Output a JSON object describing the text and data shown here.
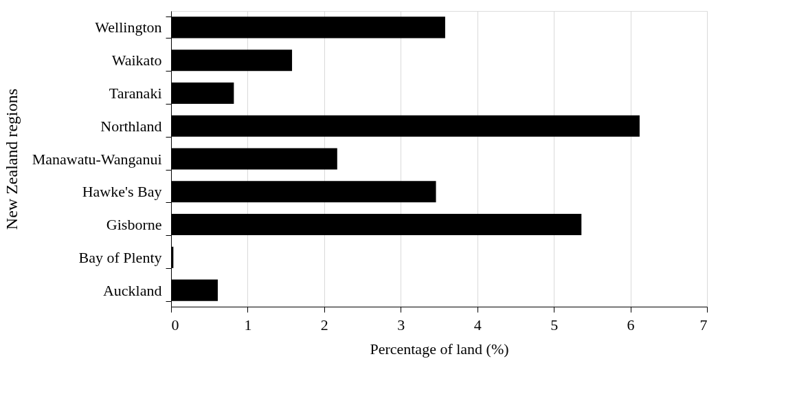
{
  "chart_data": {
    "type": "bar",
    "orientation": "horizontal",
    "xlabel": "Percentage of land (%)",
    "ylabel": "New Zealand regions",
    "categories": [
      "Wellington",
      "Waikato",
      "Taranaki",
      "Northland",
      "Manawatu-Wanganui",
      "Hawke's Bay",
      "Gisborne",
      "Bay of Plenty",
      "Auckland"
    ],
    "series": [
      {
        "color": "#000000",
        "values": [
          3.58,
          1.58,
          0.82,
          6.12,
          2.17,
          3.46,
          5.36,
          0.03,
          0.61
        ]
      }
    ],
    "xlim": [
      0,
      7
    ],
    "xticks": [
      0,
      1,
      2,
      3,
      4,
      5,
      6,
      7
    ],
    "grid": "x"
  }
}
